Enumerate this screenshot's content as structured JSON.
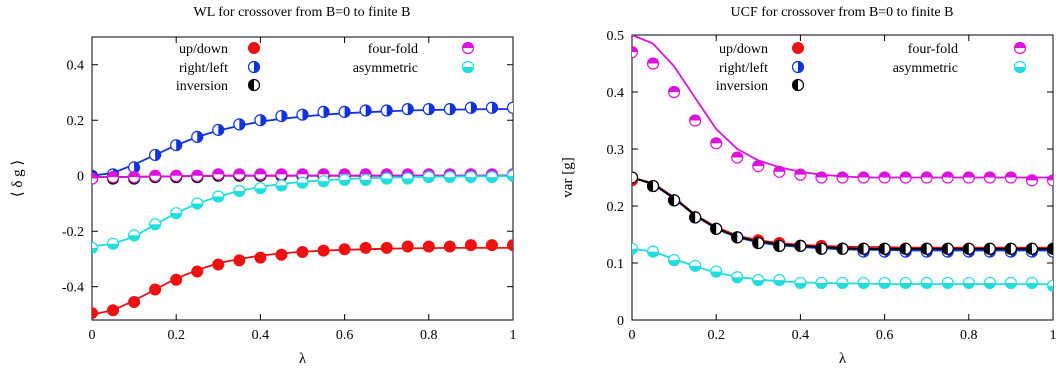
{
  "colors": {
    "up_down": "#ee1111",
    "right_left": "#1133dd",
    "inversion": "#000000",
    "four_fold": "#dd11dd",
    "asymmetric": "#22dddd"
  },
  "chart_data": [
    {
      "type": "scatter",
      "title": "WL for crossover from B=0 to finite B",
      "xlabel": "λ",
      "ylabel": "⟨ δ g ⟩",
      "xlim": [
        0,
        1
      ],
      "ylim": [
        -0.52,
        0.5
      ],
      "xticks": [
        0,
        0.2,
        0.4,
        0.6,
        0.8,
        1
      ],
      "xtick_labels": [
        "0",
        "0.2",
        "0.4",
        "0.6",
        "0.8",
        "1"
      ],
      "yticks": [
        -0.4,
        -0.2,
        0,
        0.2,
        0.4
      ],
      "ytick_labels": [
        "-0.4",
        "-0.2",
        "0",
        "0.2",
        "0.4"
      ],
      "legend_position": "top",
      "x": [
        0,
        0.05,
        0.1,
        0.15,
        0.2,
        0.25,
        0.3,
        0.35,
        0.4,
        0.45,
        0.5,
        0.55,
        0.6,
        0.65,
        0.7,
        0.75,
        0.8,
        0.85,
        0.9,
        0.95,
        1.0
      ],
      "series": [
        {
          "name": "up/down",
          "key": "up_down",
          "marker": "filled",
          "values": [
            -0.495,
            -0.485,
            -0.455,
            -0.41,
            -0.375,
            -0.345,
            -0.32,
            -0.305,
            -0.295,
            -0.285,
            -0.275,
            -0.27,
            -0.265,
            -0.26,
            -0.26,
            -0.255,
            -0.255,
            -0.255,
            -0.25,
            -0.25,
            -0.25
          ],
          "fit": [
            -0.5,
            -0.485,
            -0.45,
            -0.41,
            -0.37,
            -0.34,
            -0.315,
            -0.3,
            -0.288,
            -0.28,
            -0.274,
            -0.27,
            -0.267,
            -0.265,
            -0.263,
            -0.262,
            -0.261,
            -0.26,
            -0.26,
            -0.26,
            -0.26
          ]
        },
        {
          "name": "right/left",
          "key": "right_left",
          "marker": "half-right",
          "values": [
            0.0,
            0.005,
            0.03,
            0.075,
            0.11,
            0.14,
            0.165,
            0.185,
            0.2,
            0.215,
            0.22,
            0.23,
            0.23,
            0.235,
            0.235,
            0.24,
            0.24,
            0.24,
            0.245,
            0.245,
            0.245
          ],
          "fit": [
            0.0,
            0.01,
            0.04,
            0.075,
            0.11,
            0.14,
            0.163,
            0.18,
            0.195,
            0.205,
            0.213,
            0.22,
            0.225,
            0.229,
            0.232,
            0.235,
            0.237,
            0.238,
            0.239,
            0.24,
            0.24
          ]
        },
        {
          "name": "inversion",
          "key": "inversion",
          "marker": "half-left",
          "values": [
            -0.01,
            -0.01,
            -0.01,
            -0.005,
            -0.005,
            -0.005,
            0.0,
            0.0,
            0.0,
            0.0,
            0.0,
            0.0,
            0.0,
            0.0,
            0.0,
            0.0,
            0.0,
            0.0,
            0.0,
            0.0,
            0.0
          ],
          "fit": [
            -0.005,
            -0.005,
            -0.004,
            -0.003,
            -0.002,
            -0.001,
            0.0,
            0.0,
            0.0,
            0.0,
            0.0,
            0.0,
            0.0,
            0.0,
            0.0,
            0.0,
            0.0,
            0.0,
            0.0,
            0.0,
            0.0
          ]
        },
        {
          "name": "four-fold",
          "key": "four_fold",
          "marker": "half-top",
          "values": [
            -0.01,
            -0.005,
            -0.005,
            0.0,
            0.0,
            0.0,
            0.005,
            0.005,
            0.005,
            0.005,
            0.005,
            0.005,
            0.005,
            0.005,
            0.005,
            0.005,
            0.005,
            0.005,
            0.005,
            0.005,
            0.005
          ],
          "fit": [
            -0.005,
            -0.005,
            -0.004,
            -0.003,
            -0.002,
            -0.001,
            0.0,
            0.0,
            0.0,
            0.0,
            0.0,
            0.0,
            0.0,
            0.0,
            0.0,
            0.0,
            0.0,
            0.0,
            0.0,
            0.0,
            0.0
          ]
        },
        {
          "name": "asymmetric",
          "key": "asymmetric",
          "marker": "half-bottom",
          "values": [
            -0.26,
            -0.245,
            -0.215,
            -0.175,
            -0.135,
            -0.1,
            -0.075,
            -0.055,
            -0.045,
            -0.035,
            -0.025,
            -0.02,
            -0.015,
            -0.015,
            -0.01,
            -0.01,
            -0.005,
            -0.005,
            -0.005,
            -0.005,
            0.0
          ],
          "fit": [
            -0.255,
            -0.245,
            -0.22,
            -0.175,
            -0.135,
            -0.1,
            -0.075,
            -0.055,
            -0.04,
            -0.03,
            -0.022,
            -0.016,
            -0.012,
            -0.009,
            -0.007,
            -0.005,
            -0.004,
            -0.003,
            -0.002,
            -0.002,
            -0.001
          ]
        }
      ]
    },
    {
      "type": "scatter",
      "title": "UCF for crossover from B=0 to finite B",
      "xlabel": "λ",
      "ylabel": "var [g]",
      "xlim": [
        0,
        1
      ],
      "ylim": [
        0,
        0.5
      ],
      "xticks": [
        0,
        0.2,
        0.4,
        0.6,
        0.8,
        1
      ],
      "xtick_labels": [
        "0",
        "0.2",
        "0.4",
        "0.6",
        "0.8",
        "1"
      ],
      "yticks": [
        0,
        0.1,
        0.2,
        0.3,
        0.4,
        0.5
      ],
      "ytick_labels": [
        "0",
        "0.1",
        "0.2",
        "0.3",
        "0.4",
        "0.5"
      ],
      "legend_position": "top",
      "x": [
        0,
        0.05,
        0.1,
        0.15,
        0.2,
        0.25,
        0.3,
        0.35,
        0.4,
        0.45,
        0.5,
        0.55,
        0.6,
        0.65,
        0.7,
        0.75,
        0.8,
        0.85,
        0.9,
        0.95,
        1.0
      ],
      "series": [
        {
          "name": "up/down",
          "key": "up_down",
          "marker": "filled",
          "values": [
            0.245,
            0.235,
            0.21,
            0.18,
            0.16,
            0.145,
            0.14,
            0.135,
            0.13,
            0.13,
            0.125,
            0.125,
            0.125,
            0.125,
            0.125,
            0.125,
            0.125,
            0.125,
            0.125,
            0.125,
            0.125
          ],
          "fit": [
            0.25,
            0.24,
            0.215,
            0.185,
            0.163,
            0.148,
            0.14,
            0.135,
            0.132,
            0.13,
            0.129,
            0.128,
            0.128,
            0.127,
            0.127,
            0.127,
            0.127,
            0.127,
            0.127,
            0.127,
            0.127
          ]
        },
        {
          "name": "right/left",
          "key": "right_left",
          "marker": "half-right",
          "values": [
            0.25,
            0.235,
            0.21,
            0.18,
            0.16,
            0.145,
            0.135,
            0.13,
            0.13,
            0.125,
            0.125,
            0.12,
            0.12,
            0.12,
            0.12,
            0.12,
            0.12,
            0.12,
            0.12,
            0.12,
            0.12
          ],
          "fit": [
            0.25,
            0.238,
            0.213,
            0.183,
            0.16,
            0.145,
            0.136,
            0.131,
            0.128,
            0.126,
            0.124,
            0.123,
            0.123,
            0.122,
            0.122,
            0.122,
            0.122,
            0.122,
            0.122,
            0.122,
            0.122
          ]
        },
        {
          "name": "inversion",
          "key": "inversion",
          "marker": "half-left",
          "values": [
            0.25,
            0.235,
            0.21,
            0.18,
            0.16,
            0.145,
            0.135,
            0.13,
            0.13,
            0.125,
            0.125,
            0.125,
            0.125,
            0.125,
            0.125,
            0.125,
            0.125,
            0.125,
            0.125,
            0.125,
            0.125
          ],
          "fit": [
            0.25,
            0.239,
            0.214,
            0.184,
            0.161,
            0.146,
            0.138,
            0.133,
            0.13,
            0.128,
            0.126,
            0.125,
            0.125,
            0.125,
            0.125,
            0.125,
            0.125,
            0.125,
            0.125,
            0.125,
            0.125
          ]
        },
        {
          "name": "four-fold",
          "key": "four_fold",
          "marker": "half-top",
          "values": [
            0.47,
            0.45,
            0.4,
            0.35,
            0.31,
            0.285,
            0.27,
            0.26,
            0.255,
            0.25,
            0.25,
            0.25,
            0.25,
            0.25,
            0.25,
            0.25,
            0.25,
            0.25,
            0.25,
            0.245,
            0.245
          ],
          "fit": [
            0.5,
            0.485,
            0.445,
            0.39,
            0.335,
            0.3,
            0.28,
            0.268,
            0.26,
            0.255,
            0.252,
            0.25,
            0.25,
            0.25,
            0.25,
            0.25,
            0.25,
            0.25,
            0.25,
            0.25,
            0.25
          ]
        },
        {
          "name": "asymmetric",
          "key": "asymmetric",
          "marker": "half-bottom",
          "values": [
            0.125,
            0.12,
            0.105,
            0.095,
            0.085,
            0.075,
            0.07,
            0.07,
            0.065,
            0.065,
            0.065,
            0.065,
            0.065,
            0.065,
            0.065,
            0.065,
            0.065,
            0.065,
            0.065,
            0.065,
            0.06
          ],
          "fit": [
            0.125,
            0.12,
            0.107,
            0.094,
            0.083,
            0.076,
            0.071,
            0.068,
            0.066,
            0.065,
            0.064,
            0.064,
            0.063,
            0.063,
            0.063,
            0.063,
            0.063,
            0.063,
            0.063,
            0.063,
            0.063
          ]
        }
      ]
    }
  ]
}
